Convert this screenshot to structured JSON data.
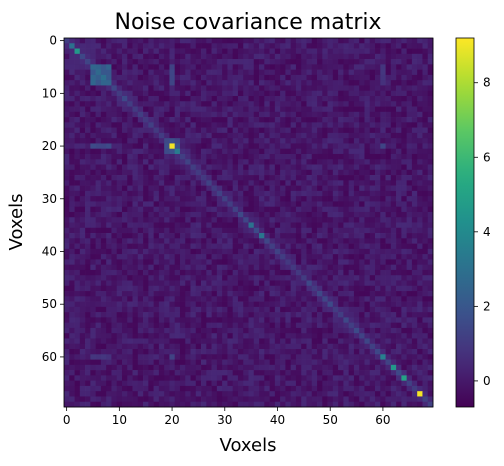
{
  "chart_data": {
    "type": "heatmap",
    "title": "Noise covariance matrix",
    "xlabel": "Voxels",
    "ylabel": "Voxels",
    "size": 70,
    "x_ticks": [
      0,
      10,
      20,
      30,
      40,
      50,
      60
    ],
    "y_ticks": [
      0,
      10,
      20,
      30,
      40,
      50,
      60
    ],
    "colormap": "viridis",
    "color_range": [
      -0.7,
      9.2
    ],
    "colorbar_ticks": [
      0,
      2,
      4,
      6,
      8
    ],
    "background_value": -0.2,
    "background_range": [
      -0.55,
      0.45
    ],
    "diagonal_default": 1.2,
    "diagonal_values": [
      {
        "index": 1,
        "value": 3.0
      },
      {
        "index": 2,
        "value": 4.6
      },
      {
        "index": 5,
        "value": 2.6
      },
      {
        "index": 6,
        "value": 2.7
      },
      {
        "index": 7,
        "value": 2.9
      },
      {
        "index": 8,
        "value": 2.5
      },
      {
        "index": 20,
        "value": 9.0
      },
      {
        "index": 21,
        "value": 3.4
      },
      {
        "index": 35,
        "value": 3.0
      },
      {
        "index": 37,
        "value": 3.2
      },
      {
        "index": 60,
        "value": 3.6
      },
      {
        "index": 62,
        "value": 4.6
      },
      {
        "index": 64,
        "value": 5.0
      },
      {
        "index": 67,
        "value": 9.1
      }
    ],
    "covariance_blocks": [
      {
        "rows": [
          5,
          8
        ],
        "cols": [
          5,
          8
        ],
        "value": 2.3
      },
      {
        "rows": [
          19,
          21
        ],
        "cols": [
          19,
          21
        ],
        "value": 1.6
      },
      {
        "rows": [
          20,
          20
        ],
        "cols": [
          5,
          8
        ],
        "value": 1.4
      },
      {
        "rows": [
          5,
          8
        ],
        "cols": [
          20,
          20
        ],
        "value": 1.4
      },
      {
        "rows": [
          20,
          20
        ],
        "cols": [
          60,
          60
        ],
        "value": 1.3
      },
      {
        "rows": [
          60,
          60
        ],
        "cols": [
          20,
          20
        ],
        "value": 1.3
      },
      {
        "rows": [
          5,
          8
        ],
        "cols": [
          60,
          60
        ],
        "value": 0.8
      },
      {
        "rows": [
          60,
          60
        ],
        "cols": [
          5,
          8
        ],
        "value": 0.8
      }
    ],
    "band_value": 0.6,
    "seed": 12345
  }
}
